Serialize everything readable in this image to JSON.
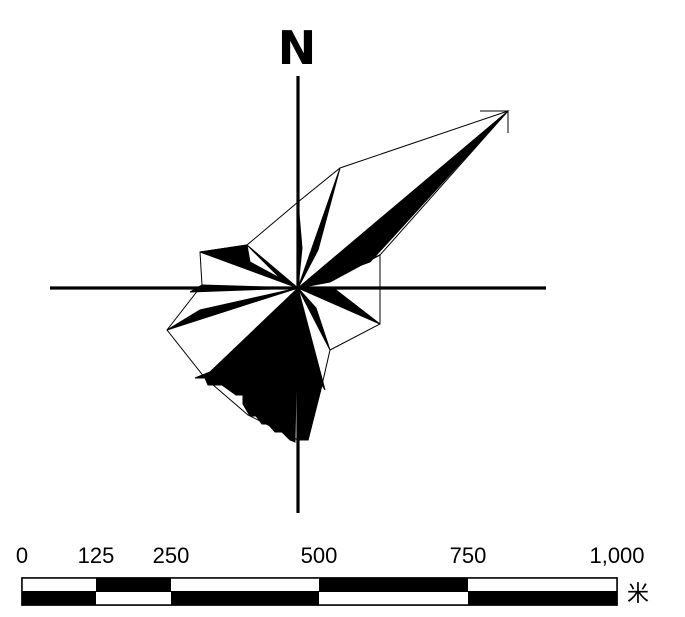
{
  "compass": {
    "north_label": "N"
  },
  "scale_bar": {
    "ticks": [
      "0",
      "125",
      "250",
      "500",
      "750",
      "1,000"
    ],
    "unit": "米"
  },
  "colors": {
    "ink": "#000000",
    "background": "#ffffff"
  }
}
